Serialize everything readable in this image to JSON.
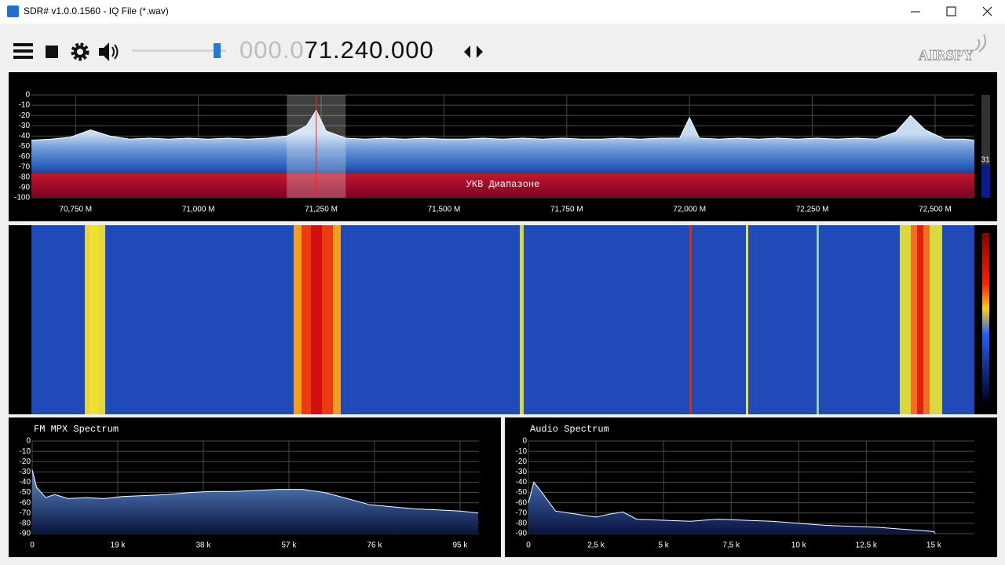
{
  "window": {
    "title": "SDR# v1.0.0.1560 - IQ File (*.wav)"
  },
  "toolbar": {
    "frequency_dim": "000.0",
    "frequency": "71.240.000",
    "logo": "AIRSPY"
  },
  "chart_data": [
    {
      "type": "area",
      "annotation": "УКВ Диапазоне",
      "side_value": 31,
      "grid": true,
      "color": "#ffffff",
      "filter_center": 71.24,
      "filter_bandwidth": 0.12,
      "xlim": [
        70.66,
        72.58
      ],
      "xticks": [
        {
          "value": 70.75,
          "label": "70,750 M"
        },
        {
          "value": 71.0,
          "label": "71,000 M"
        },
        {
          "value": 71.25,
          "label": "71,250 M"
        },
        {
          "value": 71.5,
          "label": "71,500 M"
        },
        {
          "value": 71.75,
          "label": "71,750 M"
        },
        {
          "value": 72.0,
          "label": "72,000 M"
        },
        {
          "value": 72.25,
          "label": "72,250 M"
        },
        {
          "value": 72.5,
          "label": "72,500 M"
        }
      ],
      "ylim": [
        -100,
        0
      ],
      "yticks": [
        0,
        -10,
        -20,
        -30,
        -40,
        -50,
        -60,
        -70,
        -80,
        -90,
        -100
      ],
      "x": [
        70.66,
        70.7,
        70.74,
        70.78,
        70.82,
        70.86,
        70.9,
        70.94,
        70.98,
        71.02,
        71.06,
        71.1,
        71.14,
        71.18,
        71.22,
        71.24,
        71.26,
        71.3,
        71.34,
        71.38,
        71.42,
        71.46,
        71.5,
        71.54,
        71.58,
        71.62,
        71.66,
        71.7,
        71.74,
        71.78,
        71.82,
        71.86,
        71.9,
        71.94,
        71.98,
        72.0,
        72.02,
        72.06,
        72.1,
        72.14,
        72.18,
        72.22,
        72.26,
        72.3,
        72.34,
        72.38,
        72.42,
        72.45,
        72.48,
        72.52,
        72.56,
        72.58
      ],
      "values": [
        -44,
        -43,
        -41,
        -34,
        -40,
        -43,
        -42,
        -43,
        -42,
        -43,
        -42,
        -43,
        -42,
        -40,
        -30,
        -15,
        -35,
        -42,
        -43,
        -42,
        -43,
        -42,
        -43,
        -43,
        -42,
        -43,
        -42,
        -43,
        -42,
        -43,
        -43,
        -42,
        -43,
        -42,
        -42,
        -22,
        -42,
        -43,
        -42,
        -43,
        -42,
        -43,
        -42,
        -43,
        -42,
        -43,
        -36,
        -20,
        -34,
        -43,
        -43,
        -44
      ]
    },
    {
      "type": "area",
      "title": "FM MPX Spectrum",
      "grid": true,
      "color": "#ffffff",
      "xlim": [
        0,
        99.2
      ],
      "xticks": [
        0,
        {
          "value": 19,
          "label": "19 k"
        },
        {
          "value": 38,
          "label": "38 k"
        },
        {
          "value": 57,
          "label": "57 k"
        },
        {
          "value": 76,
          "label": "76 k"
        },
        {
          "value": 95,
          "label": "95 k"
        }
      ],
      "ylim": [
        -90,
        0
      ],
      "yticks": [
        0,
        -10,
        -20,
        -30,
        -40,
        -50,
        -60,
        -70,
        -80,
        -90
      ],
      "x": [
        0,
        1,
        3,
        5,
        8,
        12,
        16,
        20,
        25,
        30,
        35,
        40,
        45,
        50,
        55,
        60,
        65,
        70,
        75,
        80,
        85,
        90,
        95,
        99
      ],
      "values": [
        -28,
        -45,
        -55,
        -52,
        -56,
        -55,
        -56,
        -54,
        -53,
        -52,
        -50,
        -49,
        -49,
        -48,
        -47,
        -47,
        -50,
        -56,
        -62,
        -64,
        -66,
        -67,
        -68,
        -70
      ]
    },
    {
      "type": "area",
      "title": "Audio Spectrum",
      "grid": true,
      "color": "#ffffff",
      "xlim": [
        0,
        16.5
      ],
      "xticks": [
        0,
        {
          "value": 2.5,
          "label": "2,5 k"
        },
        {
          "value": 5,
          "label": "5 k"
        },
        {
          "value": 7.5,
          "label": "7,5 k"
        },
        {
          "value": 10,
          "label": "10 k"
        },
        {
          "value": 12.5,
          "label": "12,5 k"
        },
        {
          "value": 15,
          "label": "15 k"
        }
      ],
      "ylim": [
        -90,
        0
      ],
      "yticks": [
        0,
        -10,
        -20,
        -30,
        -40,
        -50,
        -60,
        -70,
        -80,
        -90
      ],
      "x": [
        0,
        0.2,
        0.5,
        1,
        1.5,
        2,
        2.5,
        3,
        3.5,
        4,
        5,
        6,
        7,
        8,
        9,
        10,
        11,
        12,
        13,
        14,
        15,
        15.05
      ],
      "values": [
        -60,
        -40,
        -50,
        -68,
        -70,
        -72,
        -74,
        -71,
        -69,
        -76,
        -77,
        -78,
        -76,
        -77,
        -78,
        -80,
        -82,
        -83,
        -84,
        -86,
        -88,
        -90
      ]
    }
  ]
}
